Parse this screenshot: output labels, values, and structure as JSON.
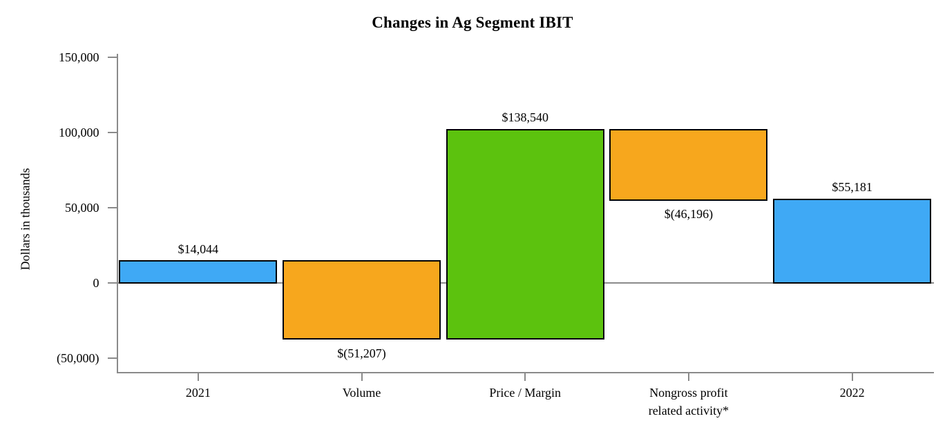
{
  "page": {
    "background": "#ffffff"
  },
  "chart_data": {
    "type": "bar",
    "subtype": "waterfall",
    "title": "Changes in Ag Segment IBIT",
    "xlabel": "",
    "ylabel": "Dollars in thousands",
    "ylim": [
      -60000,
      152000
    ],
    "grid": false,
    "legend": false,
    "y_axis_ticks": [
      {
        "value": 150000,
        "label": "150,000"
      },
      {
        "value": 100000,
        "label": "100,000"
      },
      {
        "value": 50000,
        "label": "50,000"
      },
      {
        "value": 0,
        "label": "0"
      },
      {
        "value": -50000,
        "label": "(50,000)"
      }
    ],
    "categories": [
      "2021",
      "Volume",
      "Price / Margin",
      "Nongross profit related activity*",
      "2022"
    ],
    "bars": [
      {
        "category_lines": [
          "2021"
        ],
        "value": 14044,
        "value_label": "$14,044",
        "start": 0,
        "end": 14044,
        "color_key": "blue",
        "label_pos": "above"
      },
      {
        "category_lines": [
          "Volume"
        ],
        "value": -51207,
        "value_label": "$(51,207)",
        "start": 14044,
        "end": -37163,
        "color_key": "orange",
        "label_pos": "below"
      },
      {
        "category_lines": [
          "Price / Margin"
        ],
        "value": 138540,
        "value_label": "$138,540",
        "start": -37163,
        "end": 101377,
        "color_key": "green",
        "label_pos": "above"
      },
      {
        "category_lines": [
          "Nongross profit",
          "related activity*"
        ],
        "value": -46196,
        "value_label": "$(46,196)",
        "start": 101377,
        "end": 55181,
        "color_key": "orange",
        "label_pos": "below"
      },
      {
        "category_lines": [
          "2022"
        ],
        "value": 55181,
        "value_label": "$55,181",
        "start": 0,
        "end": 55181,
        "color_key": "blue",
        "label_pos": "above"
      }
    ],
    "colors": {
      "blue": "#3FA9F5",
      "orange": "#F7A71D",
      "green": "#5CC20E",
      "bar_border": "#000000",
      "axis": "#8a8a8a",
      "text": "#000000"
    }
  }
}
